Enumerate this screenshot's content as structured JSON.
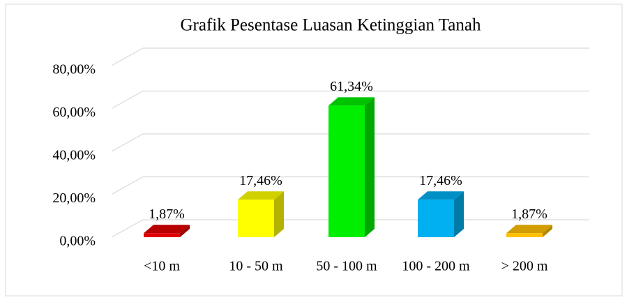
{
  "chart_data": {
    "type": "bar3d",
    "title": "Grafik Pesentase Luasan Ketinggian Tanah",
    "categories": [
      "<10 m",
      "10 - 50 m",
      "50 - 100 m",
      "100 - 200 m",
      "> 200 m"
    ],
    "values": [
      1.87,
      17.46,
      61.34,
      17.46,
      1.87
    ],
    "value_labels": [
      "1,87%",
      "17,46%",
      "61,34%",
      "17,46%",
      "1,87%"
    ],
    "colors": [
      "#e00000",
      "#ffff00",
      "#00ee00",
      "#00b0f0",
      "#ffc000"
    ],
    "ylim": [
      0,
      80
    ],
    "yticks": [
      {
        "value": 0,
        "label": "0,00%"
      },
      {
        "value": 20,
        "label": "20,00%"
      },
      {
        "value": 40,
        "label": "40,00%"
      },
      {
        "value": 60,
        "label": "60,00%"
      },
      {
        "value": 80,
        "label": "80,00%"
      }
    ],
    "grid": true
  }
}
